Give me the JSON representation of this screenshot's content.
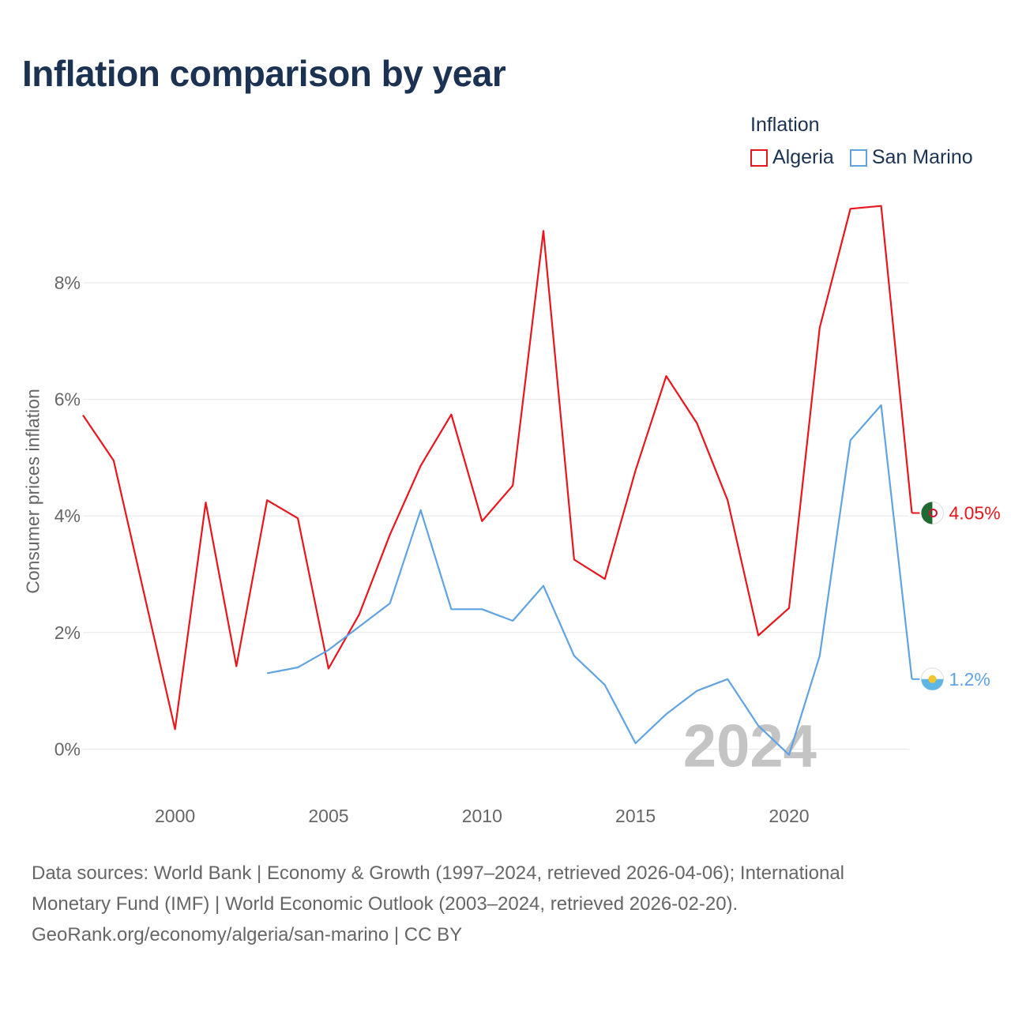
{
  "chart_data": {
    "type": "line",
    "title": "Inflation comparison by year",
    "ylabel": "Consumer prices inflation",
    "xlabel": "",
    "xlim": [
      1997,
      2024.4
    ],
    "ylim": [
      -0.7,
      9.6
    ],
    "yticks": [
      0,
      2,
      4,
      6,
      8
    ],
    "ytick_labels": [
      "0%",
      "2%",
      "4%",
      "6%",
      "8%"
    ],
    "xticks": [
      2000,
      2005,
      2010,
      2015,
      2020
    ],
    "xtick_labels": [
      "2000",
      "2005",
      "2010",
      "2015",
      "2020"
    ],
    "grid": true,
    "legend_title": "Inflation",
    "legend_position": "top-right",
    "year_watermark": "2024",
    "series": [
      {
        "name": "Algeria",
        "color": "#e8161c",
        "end_label": "4.05%",
        "flag_icon": "algeria-flag-icon",
        "points": [
          [
            1997,
            5.73
          ],
          [
            1998,
            4.95
          ],
          [
            1999,
            2.65
          ],
          [
            2000,
            0.34
          ],
          [
            2001,
            4.23
          ],
          [
            2002,
            1.42
          ],
          [
            2003,
            4.27
          ],
          [
            2004,
            3.96
          ],
          [
            2005,
            1.38
          ],
          [
            2006,
            2.31
          ],
          [
            2007,
            3.68
          ],
          [
            2008,
            4.86
          ],
          [
            2009,
            5.74
          ],
          [
            2010,
            3.91
          ],
          [
            2011,
            4.52
          ],
          [
            2012,
            8.89
          ],
          [
            2013,
            3.25
          ],
          [
            2014,
            2.92
          ],
          [
            2015,
            4.78
          ],
          [
            2016,
            6.4
          ],
          [
            2017,
            5.59
          ],
          [
            2018,
            4.27
          ],
          [
            2019,
            1.95
          ],
          [
            2020,
            2.42
          ],
          [
            2021,
            7.23
          ],
          [
            2022,
            9.27
          ],
          [
            2023,
            9.32
          ],
          [
            2024,
            4.05
          ]
        ]
      },
      {
        "name": "San Marino",
        "color": "#5fa3e3",
        "end_label": "1.2%",
        "flag_icon": "san-marino-flag-icon",
        "points": [
          [
            2003,
            1.3
          ],
          [
            2004,
            1.4
          ],
          [
            2005,
            1.7
          ],
          [
            2006,
            2.1
          ],
          [
            2007,
            2.5
          ],
          [
            2008,
            4.1
          ],
          [
            2009,
            2.4
          ],
          [
            2010,
            2.4
          ],
          [
            2011,
            2.2
          ],
          [
            2012,
            2.8
          ],
          [
            2013,
            1.6
          ],
          [
            2014,
            1.1
          ],
          [
            2015,
            0.1
          ],
          [
            2016,
            0.6
          ],
          [
            2017,
            1.0
          ],
          [
            2018,
            1.2
          ],
          [
            2019,
            0.4
          ],
          [
            2020,
            -0.1
          ],
          [
            2021,
            1.6
          ],
          [
            2022,
            5.3
          ],
          [
            2023,
            5.9
          ],
          [
            2024,
            1.2
          ]
        ]
      }
    ]
  },
  "footer": {
    "line1": "Data sources: World Bank | Economy & Growth (1997–2024, retrieved 2026-04-06); International",
    "line2": "Monetary Fund (IMF) | World Economic Outlook (2003–2024, retrieved 2026-02-20).",
    "line3": "GeoRank.org/economy/algeria/san-marino | CC BY"
  }
}
